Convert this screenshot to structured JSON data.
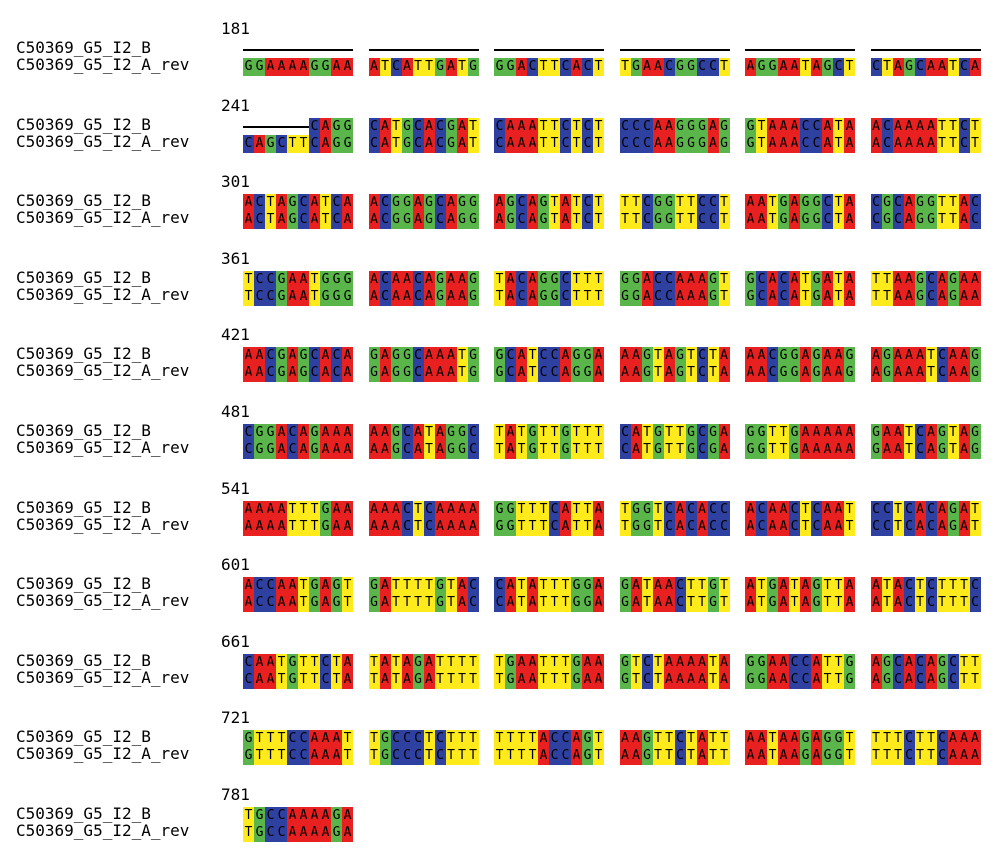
{
  "alignment": {
    "sequence_names": [
      "C50369_G5_I2_B",
      "C50369_G5_I2_A_rev"
    ],
    "colors": {
      "A": "#e8201f",
      "C": "#2e40a0",
      "G": "#5ab54a",
      "T": "#ffeb1c",
      "gap": "#000000"
    },
    "blocks": [
      {
        "start": "181",
        "rows": [
          "------------------------------------------------------------",
          "GGAAAAGGAAATCATTGATGGGACTTCACTTGAACGGCCTAGGAATAGCTCTAGCAATCA"
        ]
      },
      {
        "start": "241",
        "rows": [
          "------CAGGCATGCACGATCAAATTCTCTCCCAAGGGAGGTAAACCATAACAAAATTCT",
          "CAGCTTCAGGCATGCACGATCAAATTCTCTCCCAAGGGAGGTAAACCATAACAAAATTCT"
        ]
      },
      {
        "start": "301",
        "rows": [
          "ACTAGCATCAACGGAGCAGGAGCAGTATCTTTCGGTTCCTAATGAGGCTACGCAGGTTAC",
          "ACTAGCATCAACGGAGCAGGAGCAGTATCTTTCGGTTCCTAATGAGGCTACGCAGGTTAC"
        ]
      },
      {
        "start": "361",
        "rows": [
          "TCCGAATGGGACAACAGAAGTACAGGCTTTGGACCAAAGTGCACATGATATTAAGCAGAA",
          "TCCGAATGGGACAACAGAAGTACAGGCTTTGGACCAAAGTGCACATGATATTAAGCAGAA"
        ]
      },
      {
        "start": "421",
        "rows": [
          "AACGAGCACAGAGGCAAATGGCATCCAGGAAAGTAGTCTAAACGGAGAAGAGAAATCAAG",
          "AACGAGCACAGAGGCAAATGGCATCCAGGAAAGTAGTCTAAACGGAGAAGAGAAATCAAG"
        ]
      },
      {
        "start": "481",
        "rows": [
          "CGGACAGAAAAAGCATAGGCTATGTTGTTTCATGTTGCGAGGTTGAAAAAGAATCAGTAG",
          "CGGACAGAAAAAGCATAGGCTATGTTGTTTCATGTTGCGAGGTTGAAAAAGAATCAGTAG"
        ]
      },
      {
        "start": "541",
        "rows": [
          "AAAATTTGAAAAACTCAAAAGGTTTCATTATGGTCACACCACAACTCAATCCTCACAGAT",
          "AAAATTTGAAAAACTCAAAAGGTTTCATTATGGTCACACCACAACTCAATCCTCACAGAT"
        ]
      },
      {
        "start": "601",
        "rows": [
          "ACCAATGAGTGATTTTGTACCATATTTGGAGATAACTTGTATGATAGTTAATACTCTTTC",
          "ACCAATGAGTGATTTTGTACCATATTTGGAGATAACTTGTATGATAGTTAATACTCTTTC"
        ]
      },
      {
        "start": "661",
        "rows": [
          "CAATGTTCTATATAGATTTTTGAATTTGAAGTCTAAAATAGGAACCATTGAGCACAGCTT",
          "CAATGTTCTATATAGATTTTTGAATTTGAAGTCTAAAATAGGAACCATTGAGCACAGCTT"
        ]
      },
      {
        "start": "721",
        "rows": [
          "GTTTCCAAATTGCCCTCTTTTTTTACCAGTAAGTTCTATTAATAAGAGGTTTTCTTCAAA",
          "GTTTCCAAATTGCCCTCTTTTTTTACCAGTAAGTTCTATTAATAAGAGGTTTTCTTCAAA"
        ]
      },
      {
        "start": "781",
        "rows": [
          "TGCCAAAAGA",
          "TGCCAAAAGA"
        ]
      }
    ]
  }
}
